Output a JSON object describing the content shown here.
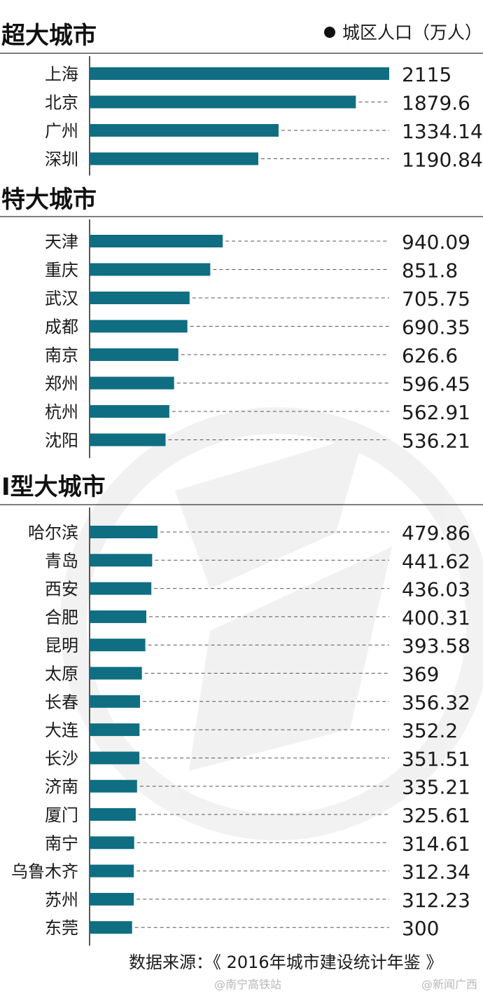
{
  "chart_data": {
    "type": "bar",
    "orientation": "horizontal",
    "legend": {
      "text": "城区人口（万人）",
      "position": "top-right"
    },
    "source": "数据来源：《 2016年城市建设统计年鉴 》",
    "colors": {
      "bar": "#0f6e82"
    },
    "xlim": [
      0,
      2115
    ],
    "groups": [
      {
        "title": "超大城市",
        "categories": [
          "上海",
          "北京",
          "广州",
          "深圳"
        ],
        "values": [
          2115,
          1879.6,
          1334.14,
          1190.84
        ],
        "labels": [
          "2115",
          "1879.6",
          "1334.14",
          "1190.84"
        ]
      },
      {
        "title": "特大城市",
        "categories": [
          "天津",
          "重庆",
          "武汉",
          "成都",
          "南京",
          "郑州",
          "杭州",
          "沈阳"
        ],
        "values": [
          940.09,
          851.8,
          705.75,
          690.35,
          626.6,
          596.45,
          562.91,
          536.21
        ],
        "labels": [
          "940.09",
          "851.8",
          "705.75",
          "690.35",
          "626.6",
          "596.45",
          "562.91",
          "536.21"
        ]
      },
      {
        "title": "Ⅰ型大城市",
        "categories": [
          "哈尔滨",
          "青岛",
          "西安",
          "合肥",
          "昆明",
          "太原",
          "长春",
          "大连",
          "长沙",
          "济南",
          "厦门",
          "南宁",
          "乌鲁木齐",
          "苏州",
          "东莞"
        ],
        "values": [
          479.86,
          441.62,
          436.03,
          400.31,
          393.58,
          369,
          356.32,
          352.2,
          351.51,
          335.21,
          325.61,
          314.61,
          312.34,
          312.23,
          300
        ],
        "labels": [
          "479.86",
          "441.62",
          "436.03",
          "400.31",
          "393.58",
          "369",
          "356.32",
          "352.2",
          "351.51",
          "335.21",
          "325.61",
          "314.61",
          "312.34",
          "312.23",
          "300"
        ]
      }
    ]
  },
  "footer": {
    "watermark_left": "@南宁高铁站",
    "watermark_right": "@新闻广西"
  }
}
